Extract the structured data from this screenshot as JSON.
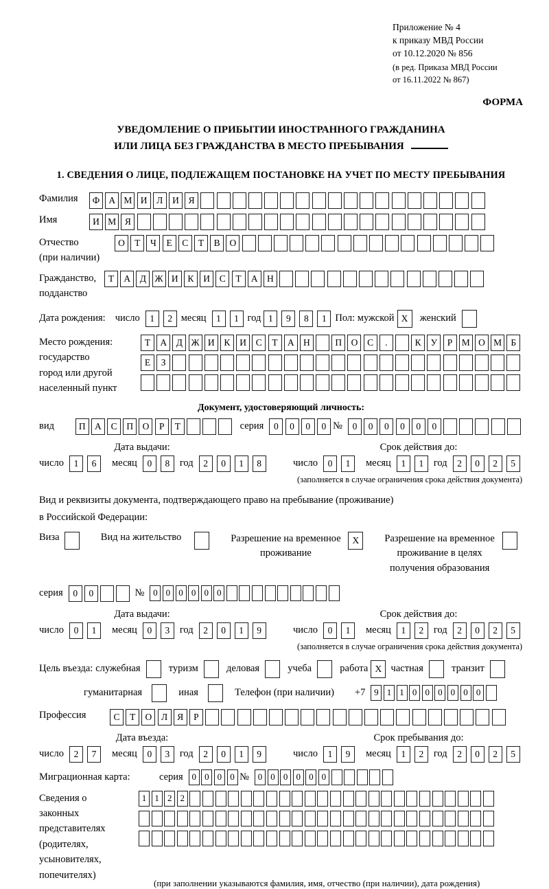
{
  "header": {
    "appendix_line1": "Приложение № 4",
    "appendix_line2": "к приказу МВД России",
    "appendix_line3": "от 10.12.2020 № 856",
    "amendment_line1": "(в ред. Приказа МВД России",
    "amendment_line2": "от 16.11.2022 № 867)",
    "form_label": "ФОРМА"
  },
  "title": {
    "line1": "УВЕДОМЛЕНИЕ О ПРИБЫТИИ ИНОСТРАННОГО ГРАЖДАНИНА",
    "line2": "ИЛИ ЛИЦА БЕЗ ГРАЖДАНСТВА В МЕСТО ПРЕБЫВАНИЯ"
  },
  "section1": {
    "title": "1. СВЕДЕНИЯ О ЛИЦЕ, ПОДЛЕЖАЩЕМ ПОСТАНОВКЕ НА УЧЕТ ПО МЕСТУ ПРЕБЫВАНИЯ"
  },
  "person": {
    "surname": {
      "label": "Фамилия",
      "value": "ФАМИЛИЯ"
    },
    "firstname": {
      "label": "Имя",
      "value": "ИМЯ"
    },
    "patronymic": {
      "label1": "Отчество",
      "label2": "(при наличии)",
      "value": "ОТЧЕСТВО"
    },
    "citizenship": {
      "label1": "Гражданство,",
      "label2": "подданство",
      "value": "ТАДЖИКИСТАН"
    },
    "birth_date": {
      "label": "Дата рождения:",
      "day_label": "число",
      "day": "12",
      "month_label": "месяц",
      "month": "11",
      "year_label": "год",
      "year": "1981"
    },
    "sex": {
      "label": "Пол: мужской",
      "male": "X",
      "female_label": "женский",
      "female": ""
    },
    "birth_place": {
      "label1": "Место рождения:",
      "label2": "государство",
      "label3": "город или другой",
      "label4": "населенный пункт",
      "row1": "ТАДЖИКИСТАН ПОС. КУРМОМБ",
      "row2": "ЕЗ",
      "row3": ""
    }
  },
  "identity_doc": {
    "header": "Документ, удостоверяющий личность:",
    "kind_label": "вид",
    "kind": "ПАСПОРТ",
    "series_label": "серия",
    "series": "0000",
    "number_label": "№",
    "number": "000000",
    "issue": {
      "header": "Дата выдачи:",
      "day_label": "число",
      "day": "16",
      "month_label": "месяц",
      "month": "08",
      "year_label": "год",
      "year": "2018"
    },
    "expiry": {
      "header": "Срок действия до:",
      "day_label": "число",
      "day": "01",
      "month_label": "месяц",
      "month": "11",
      "year_label": "год",
      "year": "2025",
      "note": "(заполняется в случае ограничения срока действия документа)"
    }
  },
  "residence": {
    "intro1": "Вид и реквизиты документа, подтверждающего право на пребывание (проживание)",
    "intro2": "в Российской Федерации:",
    "visa_label": "Виза",
    "visa": "",
    "permit_label": "Вид на жительство",
    "permit": "",
    "rvp_label": "Разрешение на временное проживание",
    "rvp": "X",
    "rvp_edu_label": "Разрешение на временное проживание в целях получения образования",
    "rvp_edu": "",
    "series_label": "серия",
    "series": "00",
    "number_label": "№",
    "number": "000000",
    "issue": {
      "header": "Дата выдачи:",
      "day_label": "число",
      "day": "01",
      "month_label": "месяц",
      "month": "03",
      "year_label": "год",
      "year": "2019"
    },
    "expiry": {
      "header": "Срок действия до:",
      "day_label": "число",
      "day": "01",
      "month_label": "месяц",
      "month": "12",
      "year_label": "год",
      "year": "2025",
      "note": "(заполняется в случае ограничения срока действия документа)"
    }
  },
  "purpose": {
    "label": "Цель въезда:",
    "opt1_label": "служебная",
    "opt1": "",
    "opt2_label": "туризм",
    "opt2": "",
    "opt3_label": "деловая",
    "opt3": "",
    "opt4_label": "учеба",
    "opt4": "",
    "opt5_label": "работа",
    "opt5": "X",
    "opt6_label": "частная",
    "opt6": "",
    "opt7_label": "транзит",
    "opt7": "",
    "opt8_label": "гуманитарная",
    "opt8": "",
    "opt9_label": "иная",
    "opt9": "",
    "phone_label": "Телефон (при наличии)",
    "phone_prefix": "+7",
    "phone": "911000000"
  },
  "profession": {
    "label": "Профессия",
    "value": "СТОЛЯР"
  },
  "entry": {
    "date": {
      "header": "Дата въезда:",
      "day_label": "число",
      "day": "27",
      "month_label": "месяц",
      "month": "03",
      "year_label": "год",
      "year": "2019"
    },
    "stay_until": {
      "header": "Срок пребывания до:",
      "day_label": "число",
      "day": "19",
      "month_label": "месяц",
      "month": "12",
      "year_label": "год",
      "year": "2025"
    }
  },
  "migration_card": {
    "label": "Миграционная карта:",
    "series_label": "серия",
    "series": "0000",
    "number_label": "№",
    "number": "000000"
  },
  "legal_reps": {
    "label1": "Сведения о",
    "label2": "законных",
    "label3": "представителях",
    "label4": "(родителях,",
    "label5": "усыновителях,",
    "label6": "попечителях)",
    "row1": "1122",
    "row2": "",
    "row3": "",
    "note": "(при заполнении указываются фамилия, имя, отчество (при наличии), дата рождения)"
  }
}
